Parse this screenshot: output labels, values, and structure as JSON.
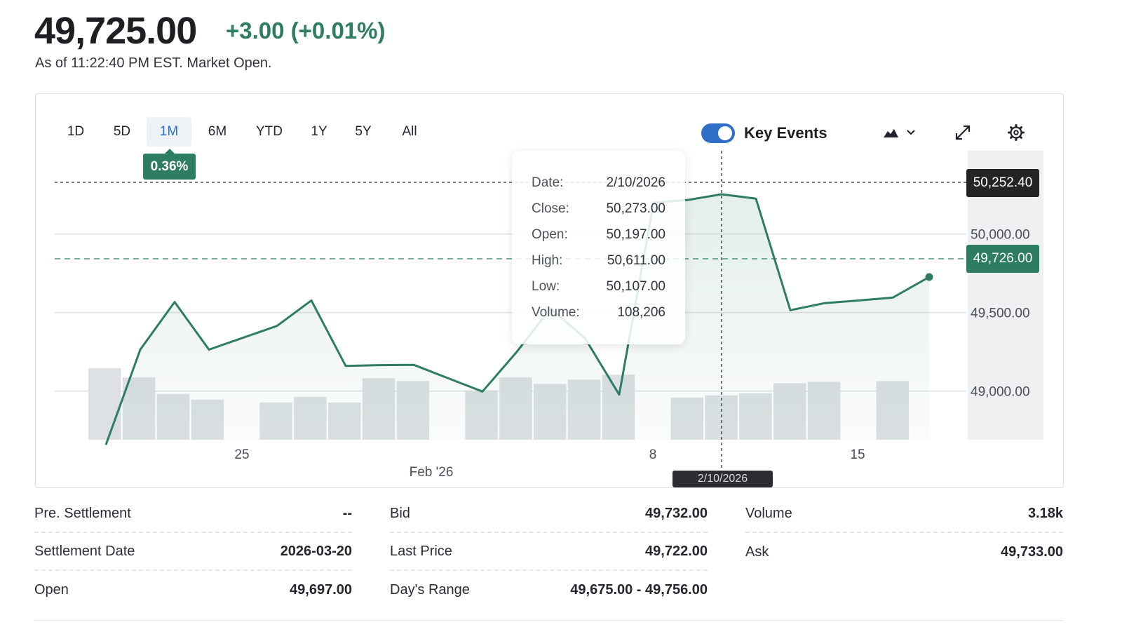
{
  "quote": {
    "price": "49,725.00",
    "change": "+3.00 (+0.01%)",
    "as_of": "As of 11:22:40 PM EST. Market Open."
  },
  "range_tabs": [
    "1D",
    "5D",
    "1M",
    "6M",
    "YTD",
    "1Y",
    "5Y",
    "All"
  ],
  "active_range": "1M",
  "range_change": "0.36%",
  "key_events": {
    "label": "Key Events",
    "enabled": true
  },
  "toolbar_icons": [
    "mountain-chart-icon",
    "chevron-down-icon",
    "expand-icon",
    "gear-icon"
  ],
  "tooltip": {
    "rows": [
      {
        "key": "Date:",
        "value": "2/10/2026"
      },
      {
        "key": "Close:",
        "value": "50,273.00"
      },
      {
        "key": "Open:",
        "value": "50,197.00"
      },
      {
        "key": "High:",
        "value": "50,611.00"
      },
      {
        "key": "Low:",
        "value": "50,107.00"
      },
      {
        "key": "Volume:",
        "value": "108,206"
      }
    ]
  },
  "hover_price_tag": "50,252.40",
  "last_price_tag": "49,726.00",
  "hover_date_tag": "2/10/2026",
  "colors": {
    "line": "#2e7d62",
    "volume": "#dde1e3",
    "accent": "#2f6fc7"
  },
  "chart_data": {
    "type": "area",
    "y_ticks": [
      "50,000.00",
      "49,500.00",
      "49,000.00"
    ],
    "y_tick_values": [
      50000,
      49500,
      49000
    ],
    "x_ticks": [
      "25",
      "8",
      "15"
    ],
    "x_sublabel": "Feb '26",
    "ylim": [
      48690,
      50530
    ],
    "series": [
      {
        "values": [
          48658,
          49264,
          49567,
          49264,
          49415,
          49577,
          49160,
          49165,
          49167,
          48997,
          49250,
          49525,
          49338,
          48977,
          50200,
          50217,
          50253,
          50225,
          49515,
          49560,
          49577,
          49595,
          49726
        ]
      }
    ],
    "volume_bars": [
      1.0,
      0.87,
      0.64,
      0.56,
      null,
      0.52,
      0.6,
      0.52,
      0.86,
      0.82,
      null,
      0.69,
      0.87,
      0.78,
      0.84,
      0.91,
      null,
      0.59,
      0.62,
      0.65,
      0.79,
      0.81,
      null,
      0.82
    ],
    "grid": true
  }
}
